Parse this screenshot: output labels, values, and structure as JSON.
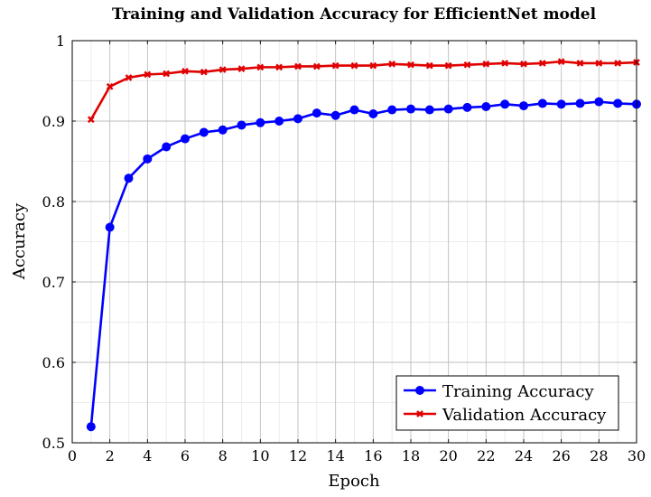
{
  "chart_data": {
    "type": "line",
    "title": "Training and Validation Accuracy for EfficientNet model",
    "xlabel": "Epoch",
    "ylabel": "Accuracy",
    "xlim": [
      0,
      30
    ],
    "ylim": [
      0.5,
      1
    ],
    "x_ticks": [
      0,
      2,
      4,
      6,
      8,
      10,
      12,
      14,
      16,
      18,
      20,
      22,
      24,
      26,
      28,
      30
    ],
    "y_ticks": [
      0.5,
      0.6,
      0.7,
      0.8,
      0.9,
      1
    ],
    "y_tick_labels": [
      "0.5",
      "0.6",
      "0.7",
      "0.8",
      "0.9",
      "1"
    ],
    "grid": true,
    "minor_grid": true,
    "legend_position": "bottom-right",
    "x": [
      1,
      2,
      3,
      4,
      5,
      6,
      7,
      8,
      9,
      10,
      11,
      12,
      13,
      14,
      15,
      16,
      17,
      18,
      19,
      20,
      21,
      22,
      23,
      24,
      25,
      26,
      27,
      28,
      29,
      30
    ],
    "series": [
      {
        "name": "Training Accuracy",
        "color": "#0000ff",
        "marker": "circle",
        "values": [
          0.52,
          0.768,
          0.829,
          0.853,
          0.868,
          0.878,
          0.886,
          0.889,
          0.895,
          0.898,
          0.9,
          0.903,
          0.91,
          0.907,
          0.914,
          0.909,
          0.914,
          0.915,
          0.914,
          0.915,
          0.917,
          0.918,
          0.921,
          0.919,
          0.922,
          0.921,
          0.922,
          0.924,
          0.922,
          0.921
        ]
      },
      {
        "name": "Validation Accuracy",
        "color": "#e00000",
        "marker": "x",
        "values": [
          0.902,
          0.943,
          0.954,
          0.958,
          0.959,
          0.962,
          0.961,
          0.964,
          0.965,
          0.967,
          0.967,
          0.968,
          0.968,
          0.969,
          0.969,
          0.969,
          0.971,
          0.97,
          0.969,
          0.969,
          0.97,
          0.971,
          0.972,
          0.971,
          0.972,
          0.974,
          0.972,
          0.972,
          0.972,
          0.973
        ]
      }
    ]
  }
}
